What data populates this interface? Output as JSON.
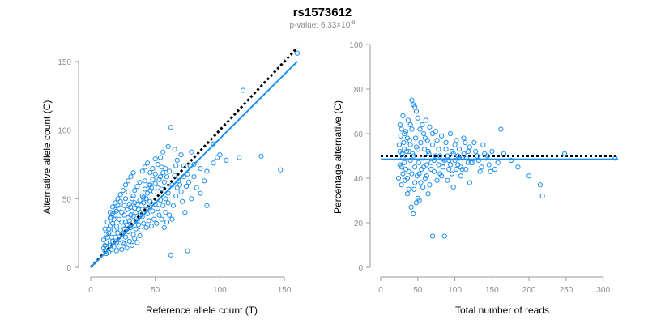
{
  "colors": {
    "point": "#1f8ff0",
    "fit": "#1f8ff0",
    "reference": "#000000",
    "axis": "#999999",
    "tick_text": "#8c8c8c"
  },
  "chart_data": [
    {
      "type": "scatter",
      "title": "rs1573612",
      "subtitle": {
        "prefix": "p-value: 6.33×10",
        "exponent": "-8"
      },
      "xlabel": "Reference allele count (T)",
      "ylabel": "Alternative allele count (C)",
      "xlim": [
        0,
        160
      ],
      "ylim": [
        0,
        160
      ],
      "xticks": [
        0,
        50,
        100,
        150
      ],
      "yticks": [
        0,
        50,
        100,
        150
      ],
      "grid": false,
      "reference_line": {
        "style": "dotted",
        "from": [
          0,
          0
        ],
        "to": [
          160,
          160
        ]
      },
      "fit_line": {
        "style": "solid",
        "from": [
          0,
          0
        ],
        "to": [
          160,
          150
        ]
      },
      "points": [
        [
          160,
          156
        ],
        [
          147,
          71
        ],
        [
          132,
          81
        ],
        [
          118,
          129
        ],
        [
          115,
          80
        ],
        [
          98,
          80
        ],
        [
          95,
          90
        ],
        [
          78,
          84
        ],
        [
          77,
          74
        ],
        [
          75,
          12
        ],
        [
          62,
          102
        ],
        [
          62,
          9
        ],
        [
          72,
          74
        ],
        [
          69,
          60
        ],
        [
          66,
          74
        ],
        [
          60,
          88
        ],
        [
          55,
          73
        ],
        [
          54,
          66
        ],
        [
          50,
          79
        ],
        [
          46,
          69
        ],
        [
          46,
          56
        ],
        [
          42,
          63
        ],
        [
          41,
          51
        ],
        [
          38,
          62
        ],
        [
          36,
          59
        ],
        [
          34,
          47
        ],
        [
          33,
          52
        ],
        [
          31,
          44
        ],
        [
          29,
          55
        ],
        [
          27,
          50
        ],
        [
          26,
          45
        ],
        [
          24,
          40
        ],
        [
          22,
          43
        ],
        [
          20,
          41
        ],
        [
          19,
          38
        ],
        [
          18,
          35
        ],
        [
          17,
          32
        ],
        [
          16,
          36
        ],
        [
          15,
          30
        ],
        [
          14,
          25
        ],
        [
          13,
          22
        ],
        [
          12,
          18
        ],
        [
          11,
          16
        ],
        [
          10,
          14
        ],
        [
          10,
          20
        ],
        [
          11,
          12
        ],
        [
          12,
          10
        ],
        [
          13,
          14
        ],
        [
          14,
          11
        ],
        [
          15,
          16
        ],
        [
          16,
          13
        ],
        [
          17,
          19
        ],
        [
          18,
          15
        ],
        [
          19,
          22
        ],
        [
          20,
          18
        ],
        [
          21,
          25
        ],
        [
          22,
          20
        ],
        [
          23,
          27
        ],
        [
          24,
          24
        ],
        [
          25,
          30
        ],
        [
          26,
          28
        ],
        [
          27,
          33
        ],
        [
          28,
          31
        ],
        [
          29,
          36
        ],
        [
          30,
          34
        ],
        [
          31,
          38
        ],
        [
          32,
          41
        ],
        [
          33,
          37
        ],
        [
          34,
          43
        ],
        [
          35,
          40
        ],
        [
          36,
          46
        ],
        [
          37,
          42
        ],
        [
          38,
          49
        ],
        [
          39,
          45
        ],
        [
          40,
          52
        ],
        [
          41,
          47
        ],
        [
          42,
          57
        ],
        [
          43,
          50
        ],
        [
          44,
          54
        ],
        [
          45,
          60
        ],
        [
          46,
          48
        ],
        [
          47,
          58
        ],
        [
          48,
          64
        ],
        [
          49,
          55
        ],
        [
          50,
          61
        ],
        [
          52,
          58
        ],
        [
          53,
          64
        ],
        [
          55,
          57
        ],
        [
          56,
          69
        ],
        [
          57,
          62
        ],
        [
          58,
          50
        ],
        [
          59,
          66
        ],
        [
          60,
          54
        ],
        [
          61,
          70
        ],
        [
          63,
          60
        ],
        [
          64,
          45
        ],
        [
          65,
          67
        ],
        [
          66,
          52
        ],
        [
          67,
          58
        ],
        [
          68,
          63
        ],
        [
          70,
          55
        ],
        [
          71,
          48
        ],
        [
          72,
          66
        ],
        [
          73,
          40
        ],
        [
          74,
          59
        ],
        [
          76,
          62
        ],
        [
          78,
          50
        ],
        [
          80,
          66
        ],
        [
          82,
          58
        ],
        [
          85,
          54
        ],
        [
          88,
          63
        ],
        [
          90,
          45
        ],
        [
          12,
          24
        ],
        [
          14,
          28
        ],
        [
          16,
          22
        ],
        [
          18,
          27
        ],
        [
          20,
          30
        ],
        [
          22,
          35
        ],
        [
          24,
          33
        ],
        [
          26,
          38
        ],
        [
          28,
          42
        ],
        [
          30,
          46
        ],
        [
          32,
          50
        ],
        [
          34,
          56
        ],
        [
          36,
          34
        ],
        [
          38,
          40
        ],
        [
          40,
          37
        ],
        [
          42,
          42
        ],
        [
          44,
          39
        ],
        [
          46,
          44
        ],
        [
          48,
          41
        ],
        [
          50,
          46
        ],
        [
          52,
          43
        ],
        [
          54,
          49
        ],
        [
          56,
          45
        ],
        [
          58,
          40
        ],
        [
          60,
          47
        ],
        [
          25,
          18
        ],
        [
          27,
          22
        ],
        [
          29,
          26
        ],
        [
          31,
          29
        ],
        [
          33,
          24
        ],
        [
          35,
          28
        ],
        [
          37,
          31
        ],
        [
          39,
          27
        ],
        [
          41,
          32
        ],
        [
          43,
          29
        ],
        [
          45,
          34
        ],
        [
          47,
          30
        ],
        [
          49,
          35
        ],
        [
          51,
          32
        ],
        [
          53,
          38
        ],
        [
          55,
          35
        ],
        [
          57,
          29
        ],
        [
          59,
          33
        ],
        [
          61,
          38
        ],
        [
          63,
          35
        ],
        [
          15,
          40
        ],
        [
          17,
          44
        ],
        [
          19,
          47
        ],
        [
          21,
          50
        ],
        [
          23,
          53
        ],
        [
          25,
          56
        ],
        [
          27,
          60
        ],
        [
          29,
          63
        ],
        [
          31,
          66
        ],
        [
          33,
          69
        ],
        [
          20,
          12
        ],
        [
          22,
          15
        ],
        [
          24,
          13
        ],
        [
          26,
          17
        ],
        [
          28,
          14
        ],
        [
          30,
          19
        ],
        [
          32,
          16
        ],
        [
          34,
          21
        ],
        [
          36,
          18
        ],
        [
          38,
          23
        ],
        [
          11,
          28
        ],
        [
          13,
          33
        ],
        [
          15,
          36
        ],
        [
          17,
          39
        ],
        [
          19,
          42
        ],
        [
          21,
          45
        ],
        [
          23,
          48
        ],
        [
          40,
          70
        ],
        [
          42,
          73
        ],
        [
          44,
          76
        ],
        [
          46,
          60
        ],
        [
          48,
          72
        ],
        [
          50,
          68
        ],
        [
          52,
          75
        ],
        [
          54,
          80
        ],
        [
          56,
          84
        ],
        [
          58,
          72
        ],
        [
          65,
          86
        ],
        [
          67,
          78
        ],
        [
          70,
          82
        ],
        [
          75,
          68
        ],
        [
          80,
          75
        ],
        [
          85,
          72
        ],
        [
          90,
          70
        ],
        [
          95,
          76
        ],
        [
          100,
          82
        ],
        [
          105,
          78
        ]
      ]
    },
    {
      "type": "scatter",
      "xlabel": "Total number of reads",
      "ylabel": "Percentage alternative (C)",
      "xlim": [
        0,
        320
      ],
      "ylim": [
        0,
        100
      ],
      "xticks": [
        0,
        50,
        100,
        150,
        200,
        250,
        300
      ],
      "yticks": [
        0,
        20,
        40,
        60,
        80,
        100
      ],
      "grid": false,
      "reference_line": {
        "style": "dotted",
        "y": 50
      },
      "fit_line": {
        "style": "solid",
        "y": 48.5
      },
      "points": [
        [
          316,
          49
        ],
        [
          248,
          51
        ],
        [
          218,
          32
        ],
        [
          215,
          37
        ],
        [
          200,
          41
        ],
        [
          185,
          45
        ],
        [
          176,
          48
        ],
        [
          166,
          51
        ],
        [
          162,
          62
        ],
        [
          158,
          47
        ],
        [
          154,
          44
        ],
        [
          150,
          52
        ],
        [
          146,
          46
        ],
        [
          142,
          49
        ],
        [
          138,
          55
        ],
        [
          134,
          43
        ],
        [
          130,
          50
        ],
        [
          126,
          56
        ],
        [
          122,
          47
        ],
        [
          120,
          38
        ],
        [
          118,
          52
        ],
        [
          115,
          44
        ],
        [
          112,
          58
        ],
        [
          110,
          49
        ],
        [
          108,
          41
        ],
        [
          106,
          53
        ],
        [
          104,
          46
        ],
        [
          102,
          57
        ],
        [
          100,
          48
        ],
        [
          98,
          36
        ],
        [
          96,
          52
        ],
        [
          94,
          60
        ],
        [
          92,
          44
        ],
        [
          90,
          50
        ],
        [
          88,
          56
        ],
        [
          86,
          14
        ],
        [
          84,
          47
        ],
        [
          82,
          59
        ],
        [
          80,
          42
        ],
        [
          78,
          53
        ],
        [
          76,
          39
        ],
        [
          74,
          61
        ],
        [
          72,
          48
        ],
        [
          70,
          14
        ],
        [
          70,
          55
        ],
        [
          68,
          44
        ],
        [
          66,
          63
        ],
        [
          65,
          51
        ],
        [
          64,
          33
        ],
        [
          63,
          57
        ],
        [
          62,
          46
        ],
        [
          61,
          66
        ],
        [
          60,
          40
        ],
        [
          59,
          53
        ],
        [
          58,
          60
        ],
        [
          57,
          36
        ],
        [
          56,
          49
        ],
        [
          55,
          44
        ],
        [
          54,
          56
        ],
        [
          53,
          62
        ],
        [
          52,
          30
        ],
        [
          51,
          47
        ],
        [
          50,
          53
        ],
        [
          49,
          41
        ],
        [
          48,
          70
        ],
        [
          47,
          58
        ],
        [
          46,
          45
        ],
        [
          45,
          35
        ],
        [
          44,
          73
        ],
        [
          43,
          51
        ],
        [
          42,
          62
        ],
        [
          41,
          27
        ],
        [
          40,
          48
        ],
        [
          39,
          57
        ],
        [
          38,
          43
        ],
        [
          37,
          66
        ],
        [
          36,
          33
        ],
        [
          35,
          52
        ],
        [
          34,
          61
        ],
        [
          33,
          39
        ],
        [
          32,
          47
        ],
        [
          31,
          56
        ],
        [
          30,
          42
        ],
        [
          29,
          51
        ],
        [
          28,
          37
        ],
        [
          27,
          59
        ],
        [
          26,
          46
        ],
        [
          26,
          64
        ],
        [
          25,
          55
        ],
        [
          24,
          40
        ],
        [
          42,
          75
        ],
        [
          46,
          72
        ],
        [
          44,
          24
        ],
        [
          48,
          29
        ],
        [
          50,
          31
        ],
        [
          38,
          35
        ],
        [
          36,
          58
        ],
        [
          34,
          44
        ],
        [
          32,
          53
        ],
        [
          30,
          49
        ],
        [
          28,
          45
        ],
        [
          26,
          52
        ],
        [
          56,
          64
        ],
        [
          60,
          58
        ],
        [
          64,
          52
        ],
        [
          68,
          47
        ],
        [
          72,
          43
        ],
        [
          76,
          57
        ],
        [
          80,
          50
        ],
        [
          84,
          45
        ],
        [
          88,
          53
        ],
        [
          92,
          48
        ],
        [
          96,
          42
        ],
        [
          100,
          55
        ],
        [
          104,
          50
        ],
        [
          108,
          45
        ],
        [
          112,
          51
        ],
        [
          116,
          49
        ],
        [
          120,
          54
        ],
        [
          124,
          47
        ],
        [
          128,
          52
        ],
        [
          132,
          48
        ],
        [
          136,
          45
        ],
        [
          140,
          51
        ],
        [
          144,
          50
        ],
        [
          148,
          43
        ],
        [
          40,
          64
        ],
        [
          50,
          67
        ],
        [
          52,
          42
        ],
        [
          54,
          38
        ],
        [
          58,
          45
        ],
        [
          62,
          41
        ],
        [
          66,
          37
        ],
        [
          70,
          60
        ],
        [
          74,
          50
        ],
        [
          78,
          46
        ],
        [
          82,
          41
        ],
        [
          86,
          48
        ],
        [
          90,
          39
        ],
        [
          94,
          46
        ],
        [
          98,
          51
        ],
        [
          102,
          44
        ],
        [
          106,
          49
        ],
        [
          110,
          44
        ],
        [
          114,
          56
        ],
        [
          118,
          47
        ],
        [
          30,
          68
        ],
        [
          28,
          62
        ],
        [
          32,
          60
        ],
        [
          36,
          40
        ],
        [
          38,
          52
        ],
        [
          40,
          55
        ],
        [
          42,
          42
        ],
        [
          44,
          50
        ],
        [
          46,
          38
        ],
        [
          48,
          54
        ]
      ]
    }
  ]
}
